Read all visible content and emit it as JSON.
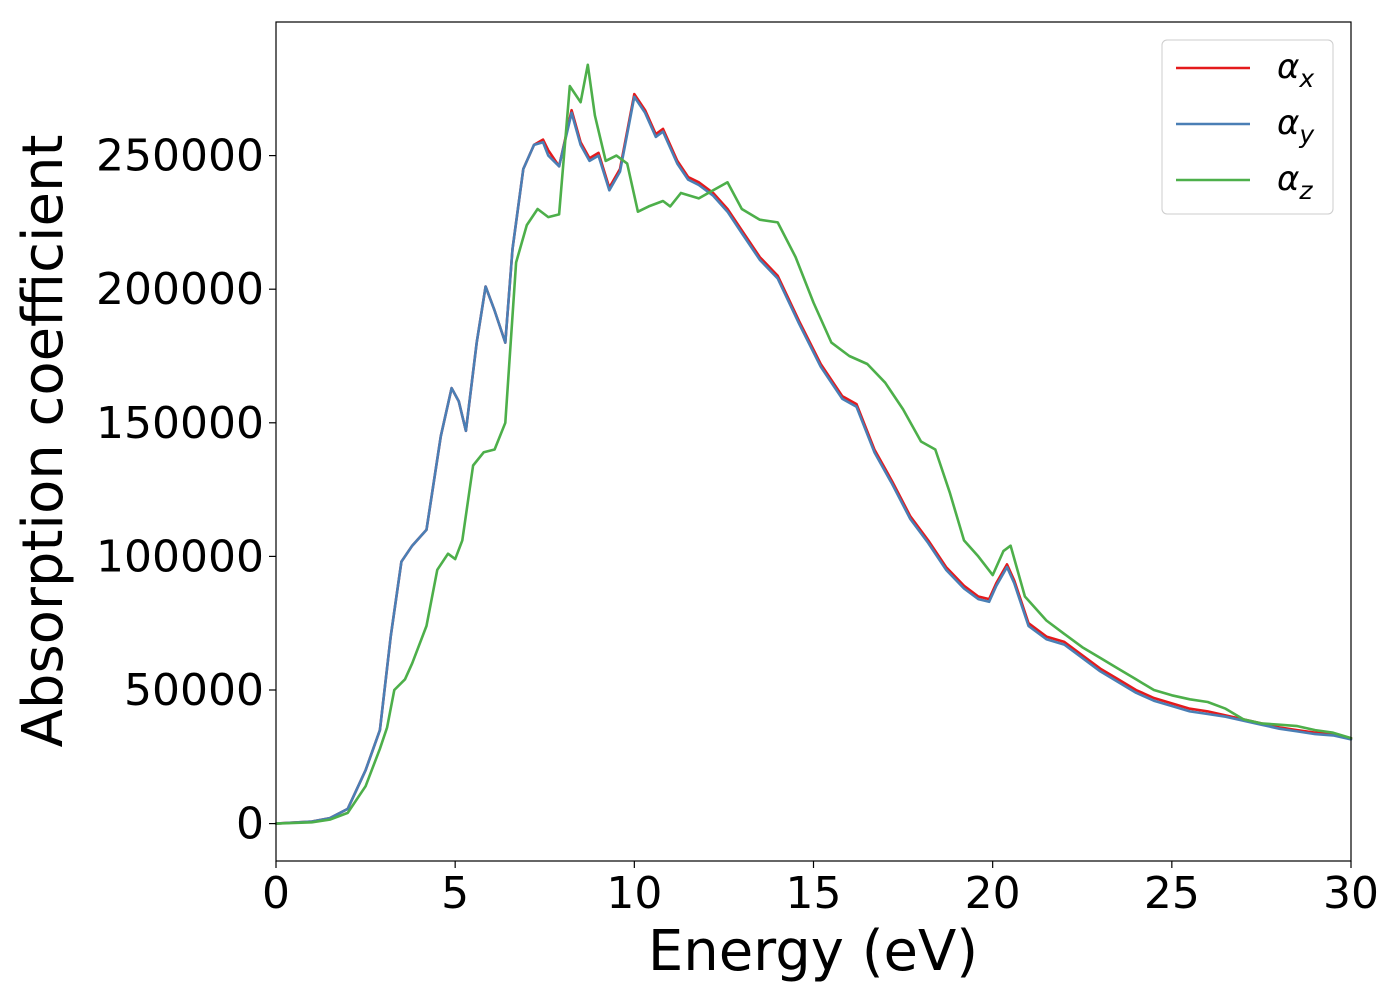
{
  "chart_data": {
    "type": "line",
    "xlabel": "Energy (eV)",
    "ylabel": "Absorption coefficient",
    "xlim": [
      0,
      30
    ],
    "ylim": [
      -14000,
      300000
    ],
    "xticks": [
      0,
      5,
      10,
      15,
      20,
      25,
      30
    ],
    "xtick_labels": [
      "0",
      "5",
      "10",
      "15",
      "20",
      "25",
      "30"
    ],
    "yticks": [
      0,
      50000,
      100000,
      150000,
      200000,
      250000
    ],
    "ytick_labels": [
      "0",
      "50000",
      "100000",
      "150000",
      "200000",
      "250000"
    ],
    "grid": false,
    "legend_position": "top-right",
    "series": [
      {
        "name": "αx",
        "base": "α",
        "sub": "x",
        "color": "#e41a1c",
        "x": [
          0,
          1,
          1.5,
          2,
          2.5,
          2.9,
          3.2,
          3.5,
          3.8,
          4.2,
          4.6,
          4.9,
          5.1,
          5.3,
          5.6,
          5.85,
          6.1,
          6.4,
          6.6,
          6.9,
          7.2,
          7.45,
          7.6,
          7.9,
          8.25,
          8.5,
          8.75,
          9.0,
          9.3,
          9.6,
          10.0,
          10.3,
          10.6,
          10.8,
          11.2,
          11.5,
          11.8,
          12.2,
          12.6,
          13.0,
          13.5,
          14.0,
          14.6,
          15.2,
          15.8,
          16.2,
          16.7,
          17.2,
          17.7,
          18.2,
          18.7,
          19.2,
          19.6,
          19.9,
          20.1,
          20.4,
          20.6,
          21.0,
          21.5,
          22.0,
          22.5,
          23.0,
          23.5,
          24.0,
          24.5,
          25.0,
          25.5,
          26.0,
          26.5,
          27.0,
          27.5,
          28.0,
          28.5,
          29.0,
          29.5,
          30.0
        ],
        "y": [
          0,
          800,
          2000,
          5500,
          20000,
          35000,
          70000,
          98000,
          104000,
          110000,
          145000,
          163000,
          158000,
          147000,
          180000,
          201000,
          192000,
          180000,
          215000,
          245000,
          254000,
          256000,
          252000,
          246000,
          267000,
          255000,
          249000,
          251000,
          238000,
          245000,
          273000,
          267000,
          258000,
          260000,
          248000,
          242000,
          240000,
          236000,
          230000,
          222000,
          212000,
          205000,
          188000,
          172000,
          160000,
          157000,
          140000,
          128000,
          115000,
          106000,
          96000,
          89000,
          85000,
          84000,
          90000,
          97000,
          91000,
          75000,
          70000,
          68000,
          63000,
          58000,
          54000,
          50000,
          47000,
          45000,
          43000,
          42000,
          40500,
          39000,
          37500,
          36000,
          35000,
          34000,
          33500,
          32000
        ]
      },
      {
        "name": "αy",
        "base": "α",
        "sub": "y",
        "color": "#4a7fb5",
        "x": [
          0,
          1,
          1.5,
          2,
          2.5,
          2.9,
          3.2,
          3.5,
          3.8,
          4.2,
          4.6,
          4.9,
          5.1,
          5.3,
          5.6,
          5.85,
          6.1,
          6.4,
          6.6,
          6.9,
          7.2,
          7.45,
          7.6,
          7.9,
          8.25,
          8.5,
          8.75,
          9.0,
          9.3,
          9.6,
          10.0,
          10.3,
          10.6,
          10.8,
          11.2,
          11.5,
          11.8,
          12.2,
          12.6,
          13.0,
          13.5,
          14.0,
          14.6,
          15.2,
          15.8,
          16.2,
          16.7,
          17.2,
          17.7,
          18.2,
          18.7,
          19.2,
          19.6,
          19.9,
          20.1,
          20.4,
          20.6,
          21.0,
          21.5,
          22.0,
          22.5,
          23.0,
          23.5,
          24.0,
          24.5,
          25.0,
          25.5,
          26.0,
          26.5,
          27.0,
          27.5,
          28.0,
          28.5,
          29.0,
          29.5,
          30.0
        ],
        "y": [
          0,
          800,
          2000,
          5500,
          20000,
          35000,
          70000,
          98000,
          104000,
          110000,
          145000,
          163000,
          158000,
          147000,
          180000,
          201000,
          192000,
          180000,
          215000,
          245000,
          254000,
          255000,
          250000,
          246000,
          266000,
          254000,
          248000,
          250000,
          237000,
          244000,
          272000,
          266000,
          257000,
          259000,
          247000,
          241000,
          239000,
          235000,
          229000,
          221000,
          211000,
          204000,
          187000,
          171000,
          159000,
          156000,
          139000,
          127000,
          114000,
          105000,
          95000,
          88000,
          84000,
          83000,
          89000,
          96000,
          90000,
          74000,
          69000,
          67000,
          62000,
          57000,
          53000,
          49000,
          46000,
          44000,
          42000,
          41000,
          40000,
          38500,
          37000,
          35500,
          34500,
          33500,
          33000,
          31500
        ]
      },
      {
        "name": "αz",
        "base": "α",
        "sub": "z",
        "color": "#4daf4a",
        "x": [
          0,
          1,
          1.5,
          2,
          2.5,
          2.9,
          3.1,
          3.3,
          3.6,
          3.8,
          4.2,
          4.5,
          4.8,
          5.0,
          5.2,
          5.5,
          5.8,
          6.1,
          6.4,
          6.7,
          7.0,
          7.3,
          7.6,
          7.9,
          8.2,
          8.5,
          8.7,
          8.9,
          9.2,
          9.5,
          9.8,
          10.1,
          10.4,
          10.8,
          11.0,
          11.3,
          11.8,
          12.2,
          12.6,
          13.0,
          13.5,
          14.0,
          14.5,
          15.0,
          15.5,
          16.0,
          16.5,
          17.0,
          17.5,
          18.0,
          18.4,
          18.8,
          19.2,
          19.6,
          20.0,
          20.3,
          20.5,
          20.9,
          21.5,
          22.0,
          22.5,
          23.0,
          23.5,
          24.0,
          24.5,
          25.0,
          25.5,
          26.0,
          26.5,
          27.0,
          27.5,
          28.0,
          28.5,
          29.0,
          29.5,
          30.0
        ],
        "y": [
          0,
          500,
          1500,
          4000,
          14000,
          28000,
          36000,
          50000,
          54000,
          60000,
          74000,
          95000,
          101000,
          99000,
          106000,
          134000,
          139000,
          140000,
          150000,
          210000,
          224000,
          230000,
          227000,
          228000,
          276000,
          270000,
          284000,
          265000,
          248000,
          250000,
          247000,
          229000,
          231000,
          233000,
          231000,
          236000,
          234000,
          237000,
          240000,
          230000,
          226000,
          225000,
          212000,
          195000,
          180000,
          175000,
          172000,
          165000,
          155000,
          143000,
          140000,
          124000,
          106000,
          100000,
          93000,
          102000,
          104000,
          85000,
          76000,
          71000,
          66000,
          62000,
          58000,
          54000,
          50000,
          48000,
          46500,
          45500,
          43000,
          39000,
          37500,
          37000,
          36500,
          35000,
          34000,
          32000
        ]
      }
    ]
  }
}
